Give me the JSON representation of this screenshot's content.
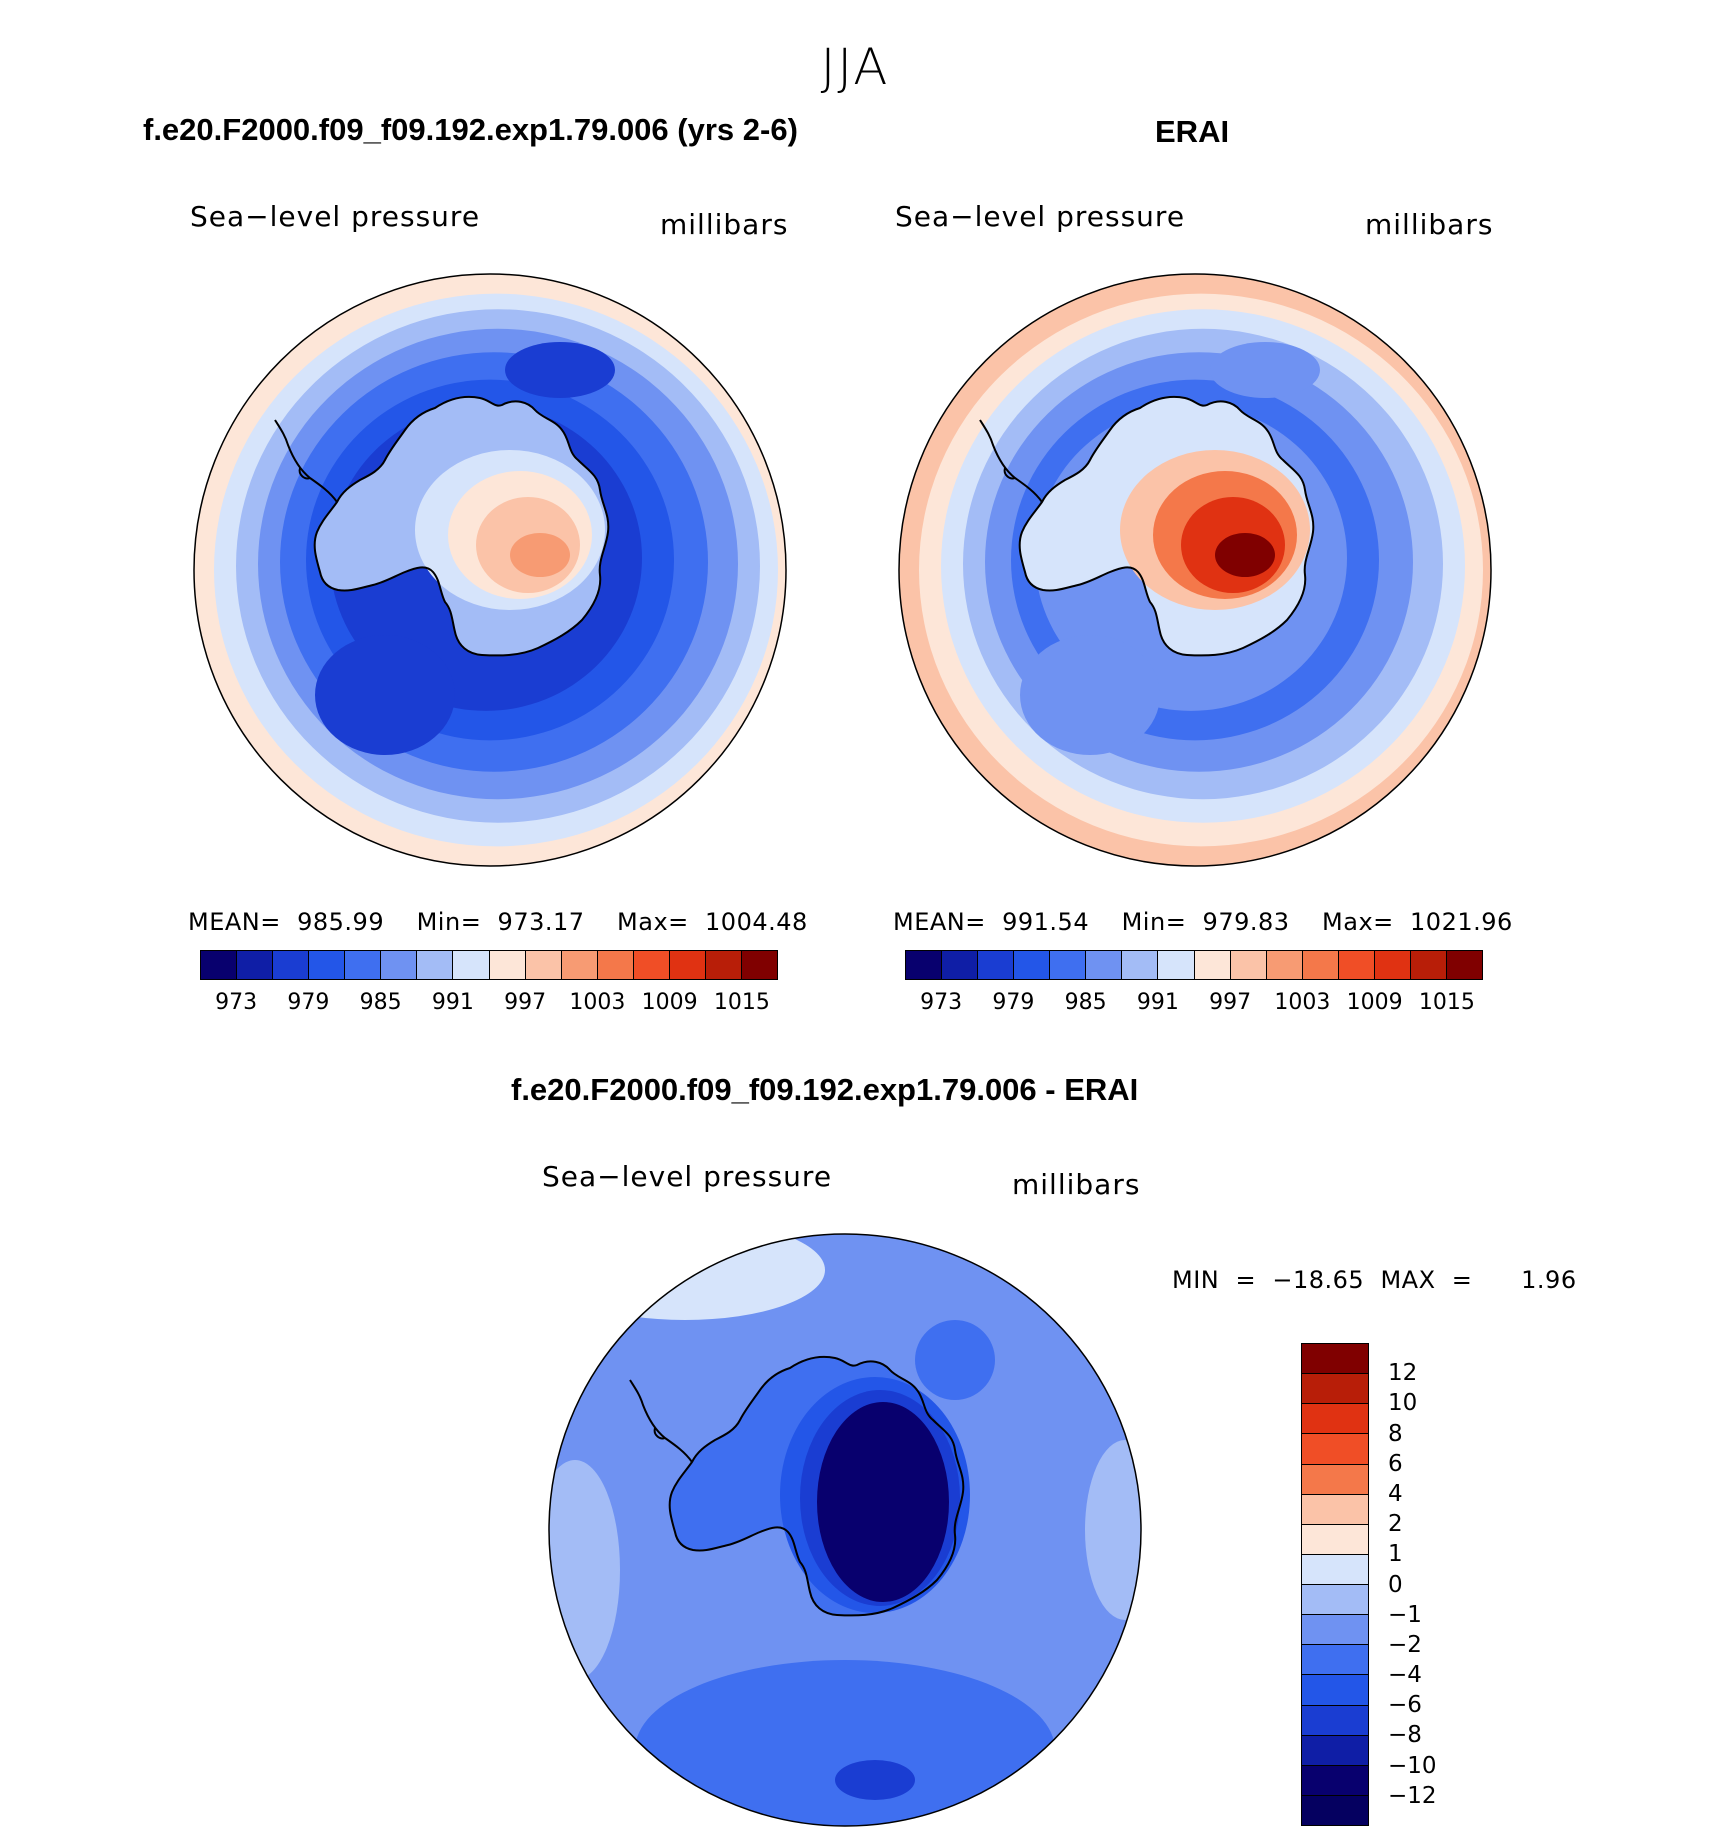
{
  "title": "JJA",
  "panels": [
    {
      "title": "f.e20.F2000.f09_f09.192.exp1.79.006 (yrs 2-6)",
      "variable": "Sea−level pressure",
      "units": "millibars",
      "stats": "MEAN=  985.99    Min=  973.17    Max=  1004.48",
      "colorbar_labels": [
        "973",
        "979",
        "985",
        "991",
        "997",
        "1003",
        "1009",
        "1015"
      ],
      "colors": [
        "#08006e",
        "#0f1ea6",
        "#1a3dd2",
        "#2356e8",
        "#3f6ff0",
        "#6f92f2",
        "#a3bcf6",
        "#d6e4fb",
        "#fde6d8",
        "#fbc3a8",
        "#f79b73",
        "#f4784a",
        "#f04e26",
        "#e03212",
        "#b81e08",
        "#800000"
      ],
      "fill": {
        "ocean_outer": "#fde6d8",
        "ring1": "#d6e4fb",
        "ring2": "#a3bcf6",
        "ring3": "#6f92f2",
        "ring4": "#3f6ff0",
        "ring5": "#2356e8",
        "ring6": "#1a3dd2",
        "continent_edge": "#a3bcf6",
        "continent_mid": "#d6e4fb",
        "continent_in": "#fde6d8",
        "continent_core": "#fbc3a8",
        "continent_peak": "#f79b73"
      }
    },
    {
      "title": "ERAI",
      "variable": "Sea−level pressure",
      "units": "millibars",
      "stats": "MEAN=  991.54    Min=  979.83    Max=  1021.96",
      "colorbar_labels": [
        "973",
        "979",
        "985",
        "991",
        "997",
        "1003",
        "1009",
        "1015"
      ],
      "colors": [
        "#08006e",
        "#0f1ea6",
        "#1a3dd2",
        "#2356e8",
        "#3f6ff0",
        "#6f92f2",
        "#a3bcf6",
        "#d6e4fb",
        "#fde6d8",
        "#fbc3a8",
        "#f79b73",
        "#f4784a",
        "#f04e26",
        "#e03212",
        "#b81e08",
        "#800000"
      ],
      "fill": {
        "ocean_outer": "#fbc3a8",
        "ring1": "#fde6d8",
        "ring2": "#d6e4fb",
        "ring3": "#a3bcf6",
        "ring4": "#6f92f2",
        "ring5": "#3f6ff0",
        "ring6": "#6f92f2",
        "continent_edge": "#d6e4fb",
        "continent_mid": "#fbc3a8",
        "continent_in": "#f4784a",
        "continent_core": "#e03212",
        "continent_peak": "#800000"
      }
    }
  ],
  "difference": {
    "title": "f.e20.F2000.f09_f09.192.exp1.79.006 - ERAI",
    "variable": "Sea−level pressure",
    "units": "millibars",
    "stats": "MIN  =  −18.65  MAX  =      1.96",
    "colorbar_labels": [
      "12",
      "10",
      "8",
      "6",
      "4",
      "2",
      "1",
      "0",
      "−1",
      "−2",
      "−4",
      "−6",
      "−8",
      "−10",
      "−12"
    ],
    "colors": [
      "#800000",
      "#b81e08",
      "#e03212",
      "#f04e26",
      "#f4784a",
      "#fbc3a8",
      "#fde6d8",
      "#d6e4fb",
      "#a3bcf6",
      "#6f92f2",
      "#3f6ff0",
      "#2356e8",
      "#1a3dd2",
      "#0f1ea6",
      "#08006e"
    ]
  }
}
